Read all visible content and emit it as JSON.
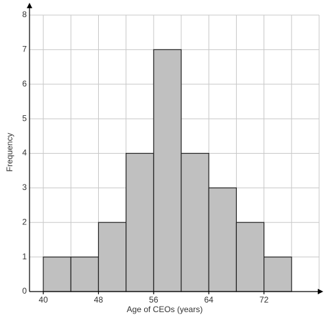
{
  "chart_data": {
    "type": "histogram",
    "x_label": "Age of CEOs (years)",
    "y_label": "Frequency",
    "bins": [
      40,
      44,
      48,
      52,
      56,
      60,
      64,
      68,
      72,
      76
    ],
    "values": [
      1,
      1,
      2,
      4,
      7,
      4,
      3,
      2,
      1
    ],
    "color": "#c0c0c0",
    "xlim": [
      38,
      80
    ],
    "xticks": [
      40,
      48,
      56,
      64,
      72
    ],
    "ylim": [
      0,
      8
    ],
    "yticks": [
      0,
      1,
      2,
      3,
      4,
      5,
      6,
      7,
      8
    ],
    "grid": true
  }
}
